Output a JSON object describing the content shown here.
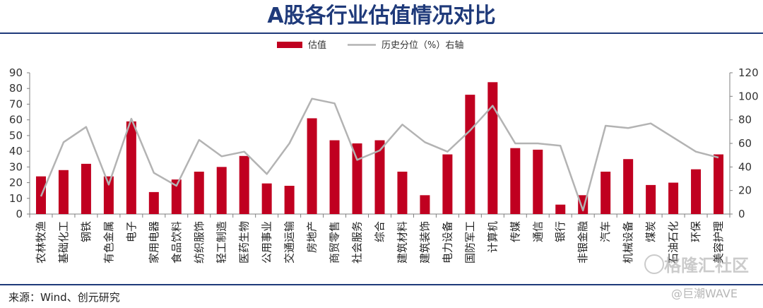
{
  "title": "A股各行业估值情况对比",
  "source": "来源：Wind、创元研究",
  "watermark_main": "格隆汇社区",
  "watermark_sub": "@巨潮WAVE",
  "colors": {
    "bar": "#c00020",
    "line": "#b3b3b3",
    "title": "#1f3a7a",
    "axis": "#7f7f7f"
  },
  "chart_data": {
    "type": "bar",
    "title": "A股各行业估值情况对比",
    "categories": [
      "农林牧渔",
      "基础化工",
      "钢铁",
      "有色金属",
      "电子",
      "家用电器",
      "食品饮料",
      "纺织服饰",
      "轻工制造",
      "医药生物",
      "公用事业",
      "交通运输",
      "房地产",
      "商贸零售",
      "社会服务",
      "综合",
      "建筑材料",
      "建筑装饰",
      "电力设备",
      "国防军工",
      "计算机",
      "传媒",
      "通信",
      "银行",
      "非银金融",
      "汽车",
      "机械设备",
      "煤炭",
      "石油石化",
      "环保",
      "美容护理"
    ],
    "series": [
      {
        "name": "估值",
        "type": "bar",
        "axis": "left",
        "values": [
          24,
          28,
          32,
          24,
          59,
          14,
          22,
          27,
          30,
          37,
          19.5,
          18,
          61,
          47,
          45,
          47,
          27,
          12,
          38,
          76,
          84,
          42,
          41,
          6,
          12,
          27,
          35,
          18.5,
          20,
          28.5,
          38
        ]
      },
      {
        "name": "历史分位（%）右轴",
        "type": "line",
        "axis": "right",
        "values": [
          15,
          61,
          74,
          25,
          81,
          35,
          24,
          63,
          49,
          53,
          34,
          60,
          98,
          94,
          46,
          54,
          76,
          61,
          53,
          71,
          92,
          60,
          60,
          58,
          3,
          75,
          73,
          77,
          65,
          53,
          48
        ]
      }
    ],
    "ylim_left": [
      0,
      90
    ],
    "yticks_left": [
      0,
      10,
      20,
      30,
      40,
      50,
      60,
      70,
      80,
      90
    ],
    "ylim_right": [
      0,
      120
    ],
    "yticks_right": [
      0,
      20,
      40,
      60,
      80,
      100,
      120
    ],
    "legend_position": "top-center",
    "grid": false
  }
}
